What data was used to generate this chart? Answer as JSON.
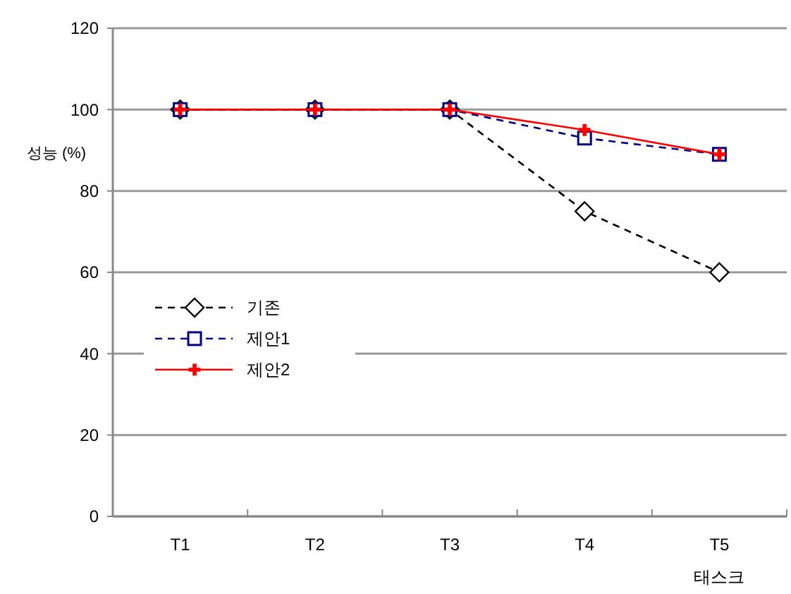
{
  "chart_data": {
    "type": "line",
    "ylabel": "성능 (%)",
    "xlabel": "태스크",
    "categories": [
      "T1",
      "T2",
      "T3",
      "T4",
      "T5"
    ],
    "series": [
      {
        "name": "기존",
        "color": "#000000",
        "values": [
          100,
          100,
          100,
          75,
          60
        ],
        "marker": "diamond",
        "line_style": "dashed"
      },
      {
        "name": "제안1",
        "color": "#000080",
        "values": [
          100,
          100,
          100,
          93,
          89
        ],
        "marker": "square",
        "line_style": "dashed"
      },
      {
        "name": "제안2",
        "color": "#ff0000",
        "values": [
          100,
          100,
          100,
          95,
          89
        ],
        "marker": "cross",
        "line_style": "solid"
      }
    ],
    "ylim": [
      0,
      120
    ],
    "yticks": [
      0,
      20,
      40,
      60,
      80,
      100,
      120
    ],
    "grid": "y",
    "legend": "left"
  }
}
